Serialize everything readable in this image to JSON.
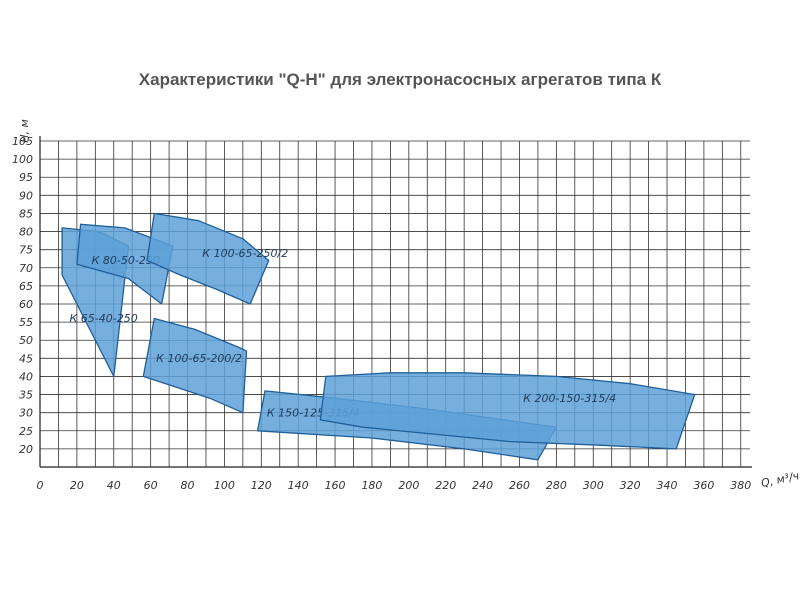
{
  "chart_data": {
    "type": "area",
    "title": "Характеристики \"Q-H\" для электронасосных агрегатов типа К",
    "xlabel": "Q, м³/час",
    "ylabel": "H, м",
    "x_ticks": [
      "0",
      "20",
      "40",
      "60",
      "80",
      "100",
      "120",
      "140",
      "160",
      "180",
      "200",
      "220",
      "240",
      "260",
      "280",
      "300",
      "320",
      "340",
      "360",
      "380"
    ],
    "y_ticks": [
      "20",
      "25",
      "30",
      "35",
      "40",
      "45",
      "50",
      "55",
      "60",
      "65",
      "70",
      "75",
      "80",
      "85",
      "90",
      "95",
      "100",
      "105"
    ],
    "xlim": [
      0,
      385
    ],
    "ylim": [
      15,
      105
    ],
    "grid": true,
    "fill_color": "#5ea1d8",
    "edge_color": "#1f5f99",
    "series": [
      {
        "name": "К 65-40-250",
        "label_at": [
          16,
          55
        ],
        "points": [
          [
            12,
            81
          ],
          [
            32,
            80
          ],
          [
            48,
            76
          ],
          [
            40,
            40
          ],
          [
            12,
            68
          ]
        ]
      },
      {
        "name": "К 80-50-250",
        "label_at": [
          28,
          71
        ],
        "points": [
          [
            22,
            82
          ],
          [
            46,
            81
          ],
          [
            72,
            76
          ],
          [
            66,
            60
          ],
          [
            48,
            67
          ],
          [
            20,
            71
          ]
        ]
      },
      {
        "name": "К 100-65-250/2",
        "label_at": [
          88,
          73
        ],
        "points": [
          [
            62,
            85
          ],
          [
            86,
            83
          ],
          [
            110,
            78
          ],
          [
            124,
            72
          ],
          [
            114,
            60
          ],
          [
            96,
            64
          ],
          [
            76,
            68
          ],
          [
            58,
            72
          ]
        ]
      },
      {
        "name": "К 100-65-200/2",
        "label_at": [
          63,
          44
        ],
        "points": [
          [
            62,
            56
          ],
          [
            84,
            53
          ],
          [
            108,
            48
          ],
          [
            112,
            47
          ],
          [
            110,
            30
          ],
          [
            92,
            34
          ],
          [
            74,
            37
          ],
          [
            56,
            40
          ]
        ]
      },
      {
        "name": "К 150-125-315/4",
        "label_at": [
          123,
          29
        ],
        "points": [
          [
            122,
            36
          ],
          [
            160,
            34
          ],
          [
            210,
            31
          ],
          [
            280,
            26
          ],
          [
            270,
            17
          ],
          [
            230,
            20
          ],
          [
            180,
            23
          ],
          [
            118,
            25
          ]
        ]
      },
      {
        "name": "К 200-150-315/4",
        "label_at": [
          262,
          33
        ],
        "points": [
          [
            155,
            40
          ],
          [
            190,
            41
          ],
          [
            230,
            41
          ],
          [
            280,
            40
          ],
          [
            320,
            38
          ],
          [
            355,
            35
          ],
          [
            345,
            20
          ],
          [
            305,
            21
          ],
          [
            255,
            22
          ],
          [
            215,
            24
          ],
          [
            175,
            26
          ],
          [
            152,
            28
          ]
        ]
      }
    ]
  }
}
